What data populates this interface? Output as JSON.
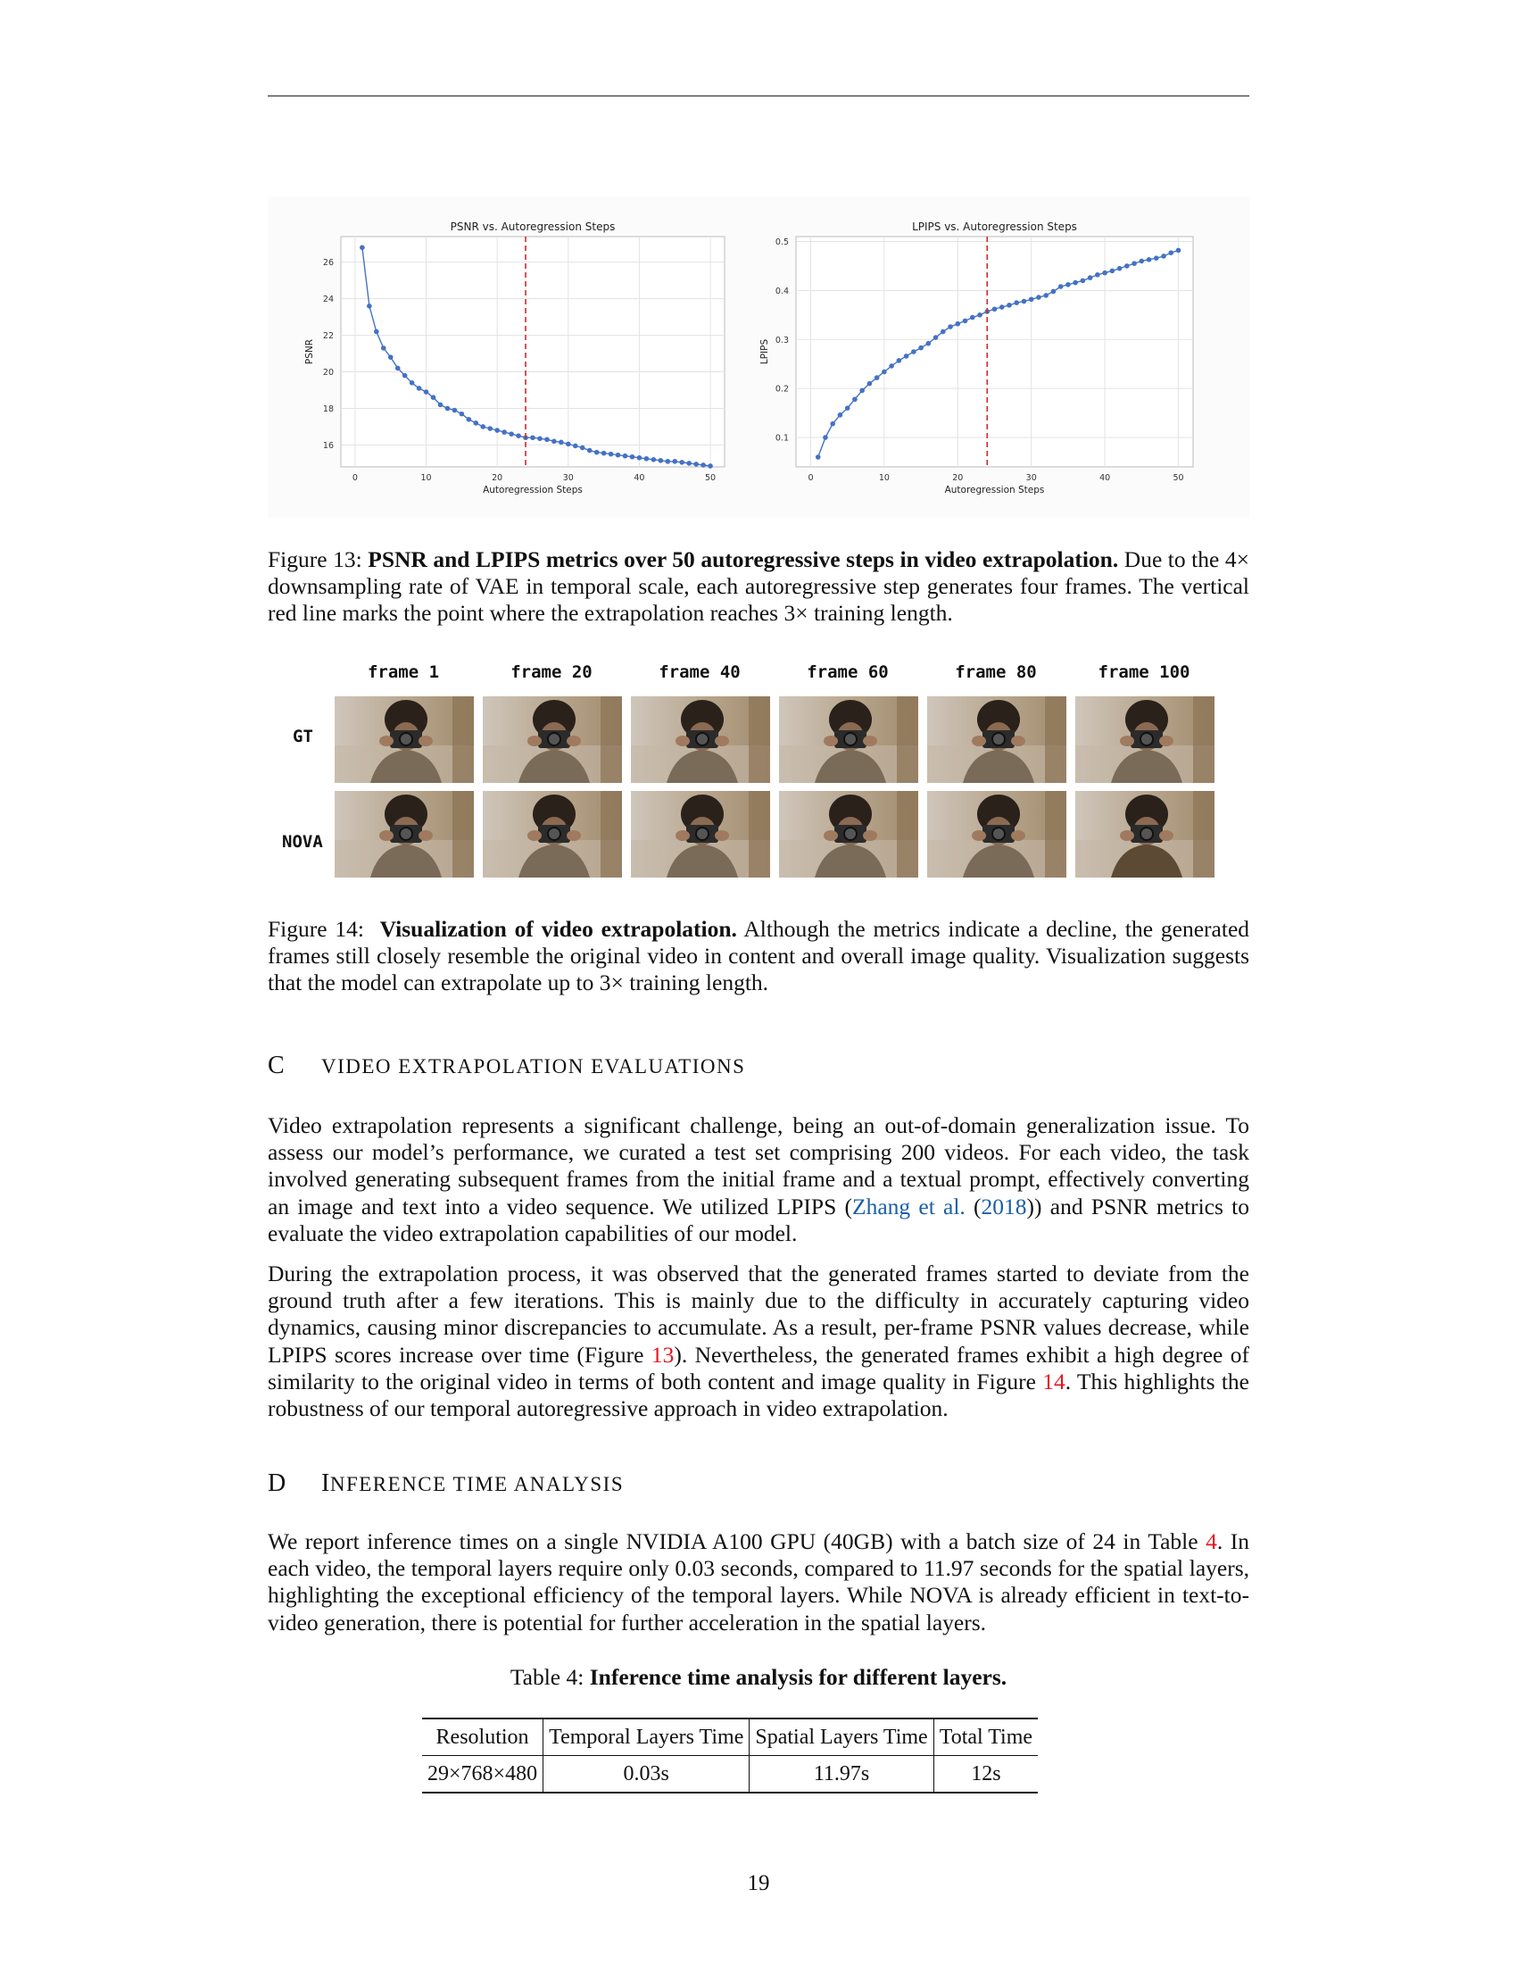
{
  "figure13": {
    "caption_prefix": "Figure 13:",
    "caption_bold": "PSNR and LPIPS metrics over 50 autoregressive steps in video extrapolation.",
    "caption_rest": "Due to the 4× downsampling rate of VAE in temporal scale, each autoregressive step generates four frames. The vertical red line marks the point where the extrapolation reaches 3× training length."
  },
  "chart_data": [
    {
      "type": "line",
      "title": "PSNR vs. Autoregression Steps",
      "xlabel": "Autoregression Steps",
      "ylabel": "PSNR",
      "xlim": [
        -2,
        52
      ],
      "ylim": [
        14.8,
        27.4
      ],
      "xticks": [
        0,
        10,
        20,
        30,
        40,
        50
      ],
      "yticks": [
        16,
        18,
        20,
        22,
        24,
        26
      ],
      "grid": true,
      "vline_x": 24,
      "vline_color": "#d62728",
      "color": "#4472c4",
      "x": [
        1,
        2,
        3,
        4,
        5,
        6,
        7,
        8,
        9,
        10,
        11,
        12,
        13,
        14,
        15,
        16,
        17,
        18,
        19,
        20,
        21,
        22,
        23,
        24,
        25,
        26,
        27,
        28,
        29,
        30,
        31,
        32,
        33,
        34,
        35,
        36,
        37,
        38,
        39,
        40,
        41,
        42,
        43,
        44,
        45,
        46,
        47,
        48,
        49,
        50
      ],
      "values": [
        26.8,
        23.6,
        22.2,
        21.3,
        20.8,
        20.2,
        19.8,
        19.4,
        19.1,
        18.9,
        18.6,
        18.2,
        18.0,
        17.9,
        17.7,
        17.4,
        17.2,
        17.0,
        16.9,
        16.8,
        16.7,
        16.6,
        16.5,
        16.4,
        16.4,
        16.35,
        16.3,
        16.2,
        16.15,
        16.05,
        15.95,
        15.85,
        15.7,
        15.6,
        15.55,
        15.5,
        15.45,
        15.4,
        15.35,
        15.3,
        15.25,
        15.2,
        15.15,
        15.1,
        15.1,
        15.05,
        15.0,
        14.95,
        14.9,
        14.85
      ]
    },
    {
      "type": "line",
      "title": "LPIPS vs. Autoregression Steps",
      "xlabel": "Autoregression Steps",
      "ylabel": "LPIPS",
      "xlim": [
        -2,
        52
      ],
      "ylim": [
        0.04,
        0.51
      ],
      "xticks": [
        0,
        10,
        20,
        30,
        40,
        50
      ],
      "yticks": [
        0.1,
        0.2,
        0.3,
        0.4,
        0.5
      ],
      "grid": true,
      "vline_x": 24,
      "vline_color": "#d62728",
      "color": "#4472c4",
      "x": [
        1,
        2,
        3,
        4,
        5,
        6,
        7,
        8,
        9,
        10,
        11,
        12,
        13,
        14,
        15,
        16,
        17,
        18,
        19,
        20,
        21,
        22,
        23,
        24,
        25,
        26,
        27,
        28,
        29,
        30,
        31,
        32,
        33,
        34,
        35,
        36,
        37,
        38,
        39,
        40,
        41,
        42,
        43,
        44,
        45,
        46,
        47,
        48,
        49,
        50
      ],
      "values": [
        0.06,
        0.1,
        0.128,
        0.146,
        0.16,
        0.178,
        0.196,
        0.21,
        0.222,
        0.234,
        0.246,
        0.257,
        0.266,
        0.275,
        0.283,
        0.292,
        0.304,
        0.316,
        0.326,
        0.332,
        0.338,
        0.345,
        0.35,
        0.357,
        0.362,
        0.366,
        0.37,
        0.375,
        0.378,
        0.382,
        0.386,
        0.39,
        0.398,
        0.408,
        0.412,
        0.416,
        0.42,
        0.426,
        0.432,
        0.436,
        0.44,
        0.445,
        0.45,
        0.455,
        0.46,
        0.463,
        0.466,
        0.47,
        0.477,
        0.482
      ]
    }
  ],
  "figure14": {
    "frame_labels": [
      "frame 1",
      "frame 20",
      "frame 40",
      "frame 60",
      "frame 80",
      "frame 100"
    ],
    "row_labels": [
      "GT",
      "NOVA"
    ],
    "caption_prefix": "Figure 14:",
    "caption_bold": "Visualization of video extrapolation.",
    "caption_rest": "Although the metrics indicate a decline, the generated frames still closely resemble the original video in content and overall image quality. Visualization suggests that the model can extrapolate up to 3× training length."
  },
  "sectionC": {
    "num": "C",
    "title": "VIDEO EXTRAPOLATION EVALUATIONS",
    "p1_a": "Video extrapolation represents a significant challenge, being an out-of-domain generalization issue. To assess our model’s performance, we curated a test set comprising 200 videos. For each video, the task involved generating subsequent frames from the initial frame and a textual prompt, effectively converting an image and text into a video sequence. We utilized LPIPS (",
    "p1_cite_author": "Zhang et al.",
    "p1_b": " (",
    "p1_cite_year": "2018",
    "p1_c": ")) and PSNR metrics to evaluate the video extrapolation capabilities of our model.",
    "p2_a": "During the extrapolation process, it was observed that the generated frames started to deviate from the ground truth after a few iterations. This is mainly due to the difficulty in accurately capturing video dynamics, causing minor discrepancies to accumulate. As a result, per-frame PSNR values decrease, while LPIPS scores increase over time (Figure ",
    "p2_ref1": "13",
    "p2_b": "). Nevertheless, the generated frames exhibit a high degree of similarity to the original video in terms of both content and image quality in Figure ",
    "p2_ref2": "14",
    "p2_c": ". This highlights the robustness of our temporal autoregressive approach in video extrapolation."
  },
  "sectionD": {
    "num": "D",
    "title_first": "I",
    "title_rest": "NFERENCE TIME ANALYSIS",
    "p1_a": "We report inference times on a single NVIDIA A100 GPU (40GB) with a batch size of 24 in Table ",
    "p1_ref": "4",
    "p1_b": ". In each video, the temporal layers require only 0.03 seconds, compared to 11.97 seconds for the spatial layers, highlighting the exceptional efficiency of the temporal layers. While NOVA is already efficient in text-to-video generation, there is potential for further acceleration in the spatial layers."
  },
  "table4": {
    "caption_prefix": "Table 4:",
    "caption_bold": "Inference time analysis for different layers.",
    "headers": [
      "Resolution",
      "Temporal Layers Time",
      "Spatial Layers Time",
      "Total Time"
    ],
    "row": [
      "29×768×480",
      "0.03s",
      "11.97s",
      "12s"
    ]
  },
  "page_number": "19"
}
